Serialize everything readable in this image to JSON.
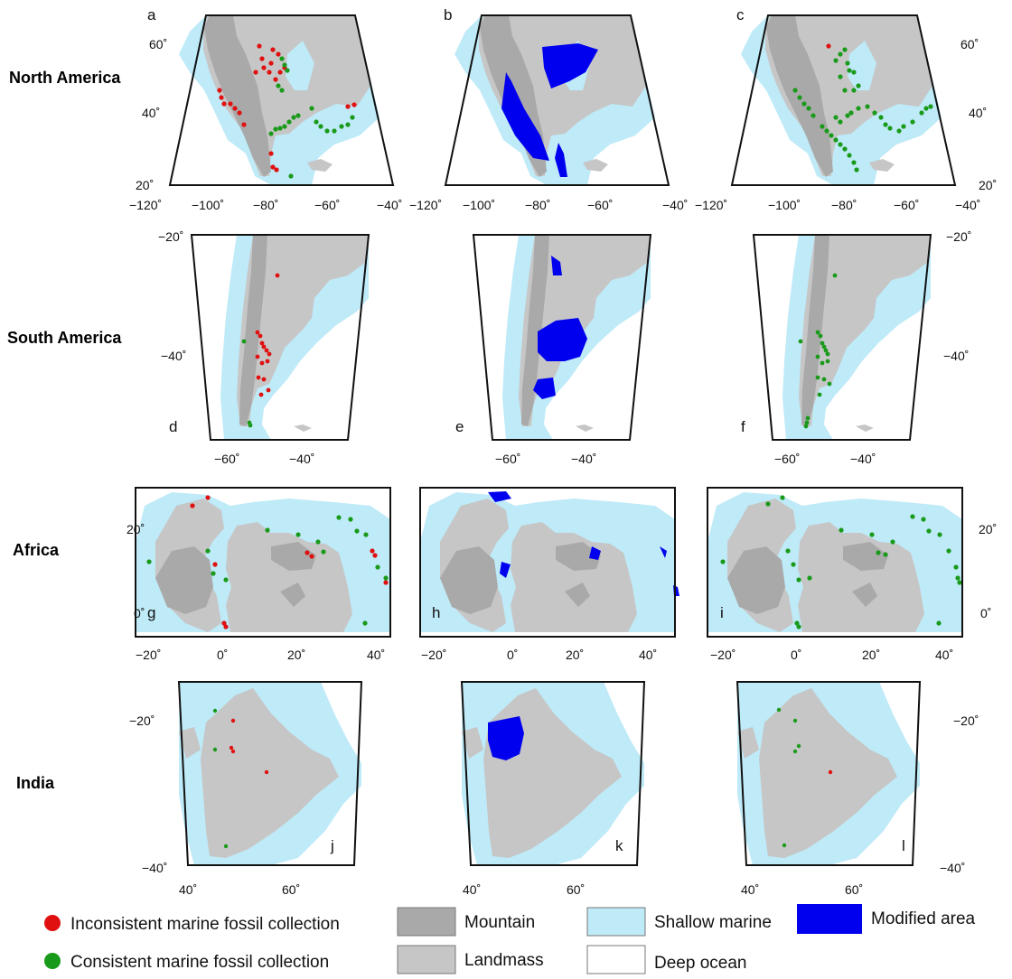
{
  "row_labels": [
    "North America",
    "South America",
    "Africa",
    "India"
  ],
  "colors": {
    "mountain": "#a9a9a9",
    "landmass": "#c6c6c6",
    "shallow": "#bfeaf8",
    "deep": "#ffffff",
    "modified": "#0000ee",
    "inconsistent": "#e01010",
    "consistent": "#1a9a1a",
    "frame": "#111111"
  },
  "panels": {
    "na": {
      "letters": [
        "a",
        "b",
        "c"
      ],
      "x_ticks": [
        "−120˚",
        "−100˚",
        "−80˚",
        "−60˚",
        "−40˚"
      ],
      "y_ticks": [
        "60˚",
        "40˚",
        "20˚"
      ],
      "y_ticks_right": [
        "60˚",
        "40˚",
        "20˚"
      ]
    },
    "sa": {
      "letters": [
        "d",
        "e",
        "f"
      ],
      "x_ticks": [
        "−60˚",
        "−40˚"
      ],
      "y_ticks": [
        "−20˚",
        "−40˚"
      ]
    },
    "af": {
      "letters": [
        "g",
        "h",
        "i"
      ],
      "x_ticks": [
        "−20˚",
        "0˚",
        "20˚",
        "40˚"
      ],
      "y_ticks": [
        "20˚",
        "0˚"
      ]
    },
    "in": {
      "letters": [
        "j",
        "k",
        "l"
      ],
      "x_ticks": [
        "40˚",
        "60˚"
      ],
      "y_ticks": [
        "−20˚",
        "−40˚"
      ]
    }
  },
  "legend": {
    "inconsistent": "Inconsistent marine fossil collection",
    "consistent": "Consistent marine fossil collection",
    "mountain": "Mountain",
    "landmass": "Landmass",
    "shallow": "Shallow marine",
    "deep": "Deep ocean",
    "modified": "Modified area"
  }
}
